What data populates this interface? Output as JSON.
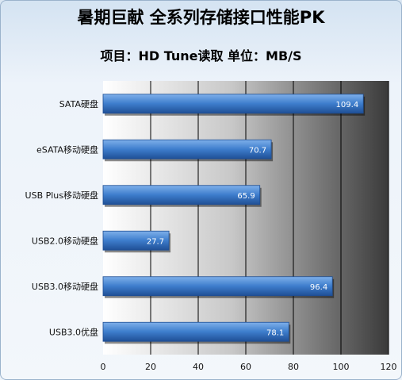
{
  "title": "暑期巨献  全系列存储接口性能PK",
  "subtitle": "项目：HD Tune读取  单位：MB/S",
  "chart_data": {
    "type": "bar",
    "orientation": "horizontal",
    "categories": [
      "SATA硬盘",
      "eSATA移动硬盘",
      "USB Plus移动硬盘",
      "USB2.0移动硬盘",
      "USB3.0移动硬盘",
      "USB3.0优盘"
    ],
    "values": [
      109.4,
      70.7,
      65.9,
      27.7,
      96.4,
      78.1
    ],
    "xlim": [
      0,
      120
    ],
    "xticks": [
      "0",
      "20",
      "40",
      "60",
      "80",
      "100",
      "120"
    ],
    "grid": true,
    "bar_color": "#3d7dcc",
    "plot_background": "#4a4a4a"
  }
}
